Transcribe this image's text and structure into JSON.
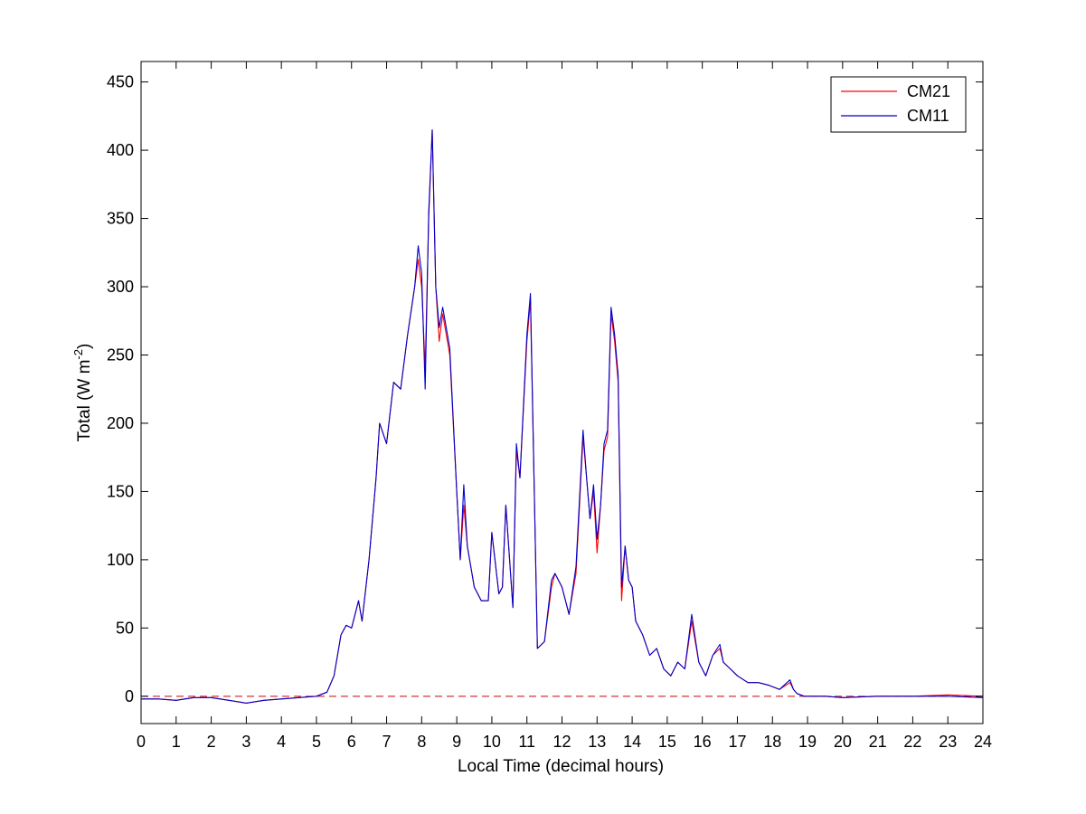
{
  "chart_data": {
    "type": "line",
    "title": "",
    "xlabel": "Local Time (decimal hours)",
    "ylabel": {
      "text": "Total (W m",
      "sup": "-2",
      "close": ")"
    },
    "xlim": [
      0,
      24
    ],
    "ylim": [
      -20,
      465
    ],
    "xticks": [
      0,
      1,
      2,
      3,
      4,
      5,
      6,
      7,
      8,
      9,
      10,
      11,
      12,
      13,
      14,
      15,
      16,
      17,
      18,
      19,
      20,
      21,
      22,
      23,
      24
    ],
    "yticks": [
      0,
      50,
      100,
      150,
      200,
      250,
      300,
      350,
      400,
      450
    ],
    "grid": false,
    "legend_position": "top-right",
    "reference_line": {
      "y": 0,
      "style": "dashed",
      "color": "#cc0000"
    },
    "series": [
      {
        "name": "CM21",
        "color": "#ff0000",
        "x": [
          0,
          0.5,
          1,
          1.5,
          2,
          2.5,
          3,
          3.5,
          4,
          4.5,
          5,
          5.3,
          5.5,
          5.7,
          5.85,
          6.0,
          6.2,
          6.3,
          6.5,
          6.7,
          6.8,
          7.0,
          7.2,
          7.4,
          7.6,
          7.8,
          7.9,
          8.0,
          8.1,
          8.2,
          8.3,
          8.4,
          8.5,
          8.6,
          8.8,
          9.0,
          9.1,
          9.2,
          9.3,
          9.5,
          9.7,
          9.9,
          10.0,
          10.2,
          10.3,
          10.4,
          10.6,
          10.7,
          10.8,
          11.0,
          11.1,
          11.3,
          11.5,
          11.7,
          11.8,
          12.0,
          12.2,
          12.4,
          12.6,
          12.7,
          12.8,
          12.9,
          13.0,
          13.1,
          13.2,
          13.3,
          13.4,
          13.5,
          13.6,
          13.7,
          13.8,
          13.9,
          14.0,
          14.1,
          14.3,
          14.5,
          14.7,
          14.9,
          15.1,
          15.3,
          15.5,
          15.7,
          15.9,
          16.1,
          16.3,
          16.5,
          16.6,
          16.8,
          17.0,
          17.3,
          17.6,
          17.9,
          18.2,
          18.5,
          18.6,
          18.7,
          18.9,
          19.5,
          20,
          21,
          22,
          23,
          24
        ],
        "y": [
          -2,
          -2,
          -3,
          -1,
          -1,
          -3,
          -5,
          -3,
          -2,
          -1,
          0,
          3,
          15,
          45,
          52,
          50,
          70,
          55,
          100,
          160,
          200,
          185,
          230,
          225,
          265,
          300,
          320,
          300,
          240,
          350,
          415,
          300,
          260,
          280,
          250,
          150,
          100,
          140,
          110,
          80,
          70,
          70,
          120,
          75,
          80,
          140,
          65,
          180,
          160,
          260,
          290,
          35,
          40,
          80,
          90,
          80,
          60,
          90,
          190,
          160,
          130,
          150,
          105,
          140,
          180,
          190,
          280,
          260,
          230,
          70,
          110,
          85,
          80,
          55,
          45,
          30,
          35,
          20,
          15,
          25,
          20,
          55,
          25,
          15,
          30,
          35,
          25,
          20,
          15,
          10,
          10,
          8,
          5,
          10,
          5,
          2,
          0,
          0,
          -1,
          0,
          0,
          1,
          0
        ]
      },
      {
        "name": "CM11",
        "color": "#0000cc",
        "x": [
          0,
          0.5,
          1,
          1.5,
          2,
          2.5,
          3,
          3.5,
          4,
          4.5,
          5,
          5.3,
          5.5,
          5.7,
          5.85,
          6.0,
          6.2,
          6.3,
          6.5,
          6.7,
          6.8,
          7.0,
          7.2,
          7.4,
          7.6,
          7.8,
          7.9,
          8.0,
          8.1,
          8.2,
          8.3,
          8.4,
          8.5,
          8.6,
          8.8,
          9.0,
          9.1,
          9.2,
          9.3,
          9.5,
          9.7,
          9.9,
          10.0,
          10.2,
          10.3,
          10.4,
          10.6,
          10.7,
          10.8,
          11.0,
          11.1,
          11.3,
          11.5,
          11.7,
          11.8,
          12.0,
          12.2,
          12.4,
          12.6,
          12.7,
          12.8,
          12.9,
          13.0,
          13.1,
          13.2,
          13.3,
          13.4,
          13.5,
          13.6,
          13.7,
          13.8,
          13.9,
          14.0,
          14.1,
          14.3,
          14.5,
          14.7,
          14.9,
          15.1,
          15.3,
          15.5,
          15.7,
          15.9,
          16.1,
          16.3,
          16.5,
          16.6,
          16.8,
          17.0,
          17.3,
          17.6,
          17.9,
          18.2,
          18.5,
          18.6,
          18.7,
          18.9,
          19.5,
          20,
          21,
          22,
          23,
          24
        ],
        "y": [
          -2,
          -2,
          -3,
          -1,
          -1,
          -3,
          -5,
          -3,
          -2,
          -1,
          0,
          3,
          15,
          45,
          52,
          50,
          70,
          55,
          100,
          160,
          200,
          185,
          230,
          225,
          265,
          300,
          330,
          310,
          225,
          355,
          415,
          300,
          270,
          285,
          255,
          150,
          100,
          155,
          110,
          80,
          70,
          70,
          120,
          75,
          80,
          140,
          65,
          185,
          160,
          265,
          295,
          35,
          40,
          85,
          90,
          80,
          60,
          95,
          195,
          160,
          130,
          155,
          115,
          140,
          185,
          195,
          285,
          265,
          235,
          80,
          110,
          85,
          80,
          55,
          45,
          30,
          35,
          20,
          15,
          25,
          20,
          60,
          25,
          15,
          30,
          38,
          25,
          20,
          15,
          10,
          10,
          8,
          5,
          12,
          5,
          2,
          0,
          0,
          -1,
          0,
          0,
          0,
          -1
        ]
      }
    ]
  }
}
